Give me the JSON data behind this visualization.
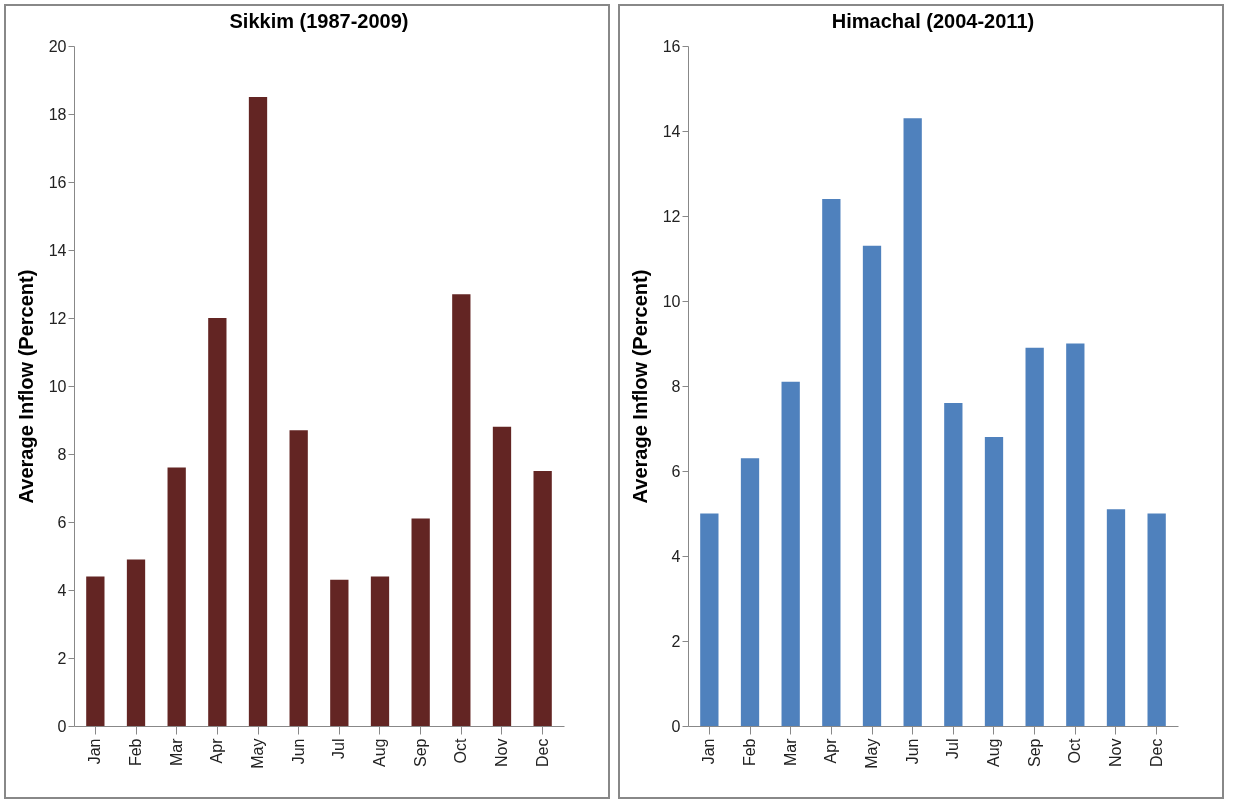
{
  "chart_data": [
    {
      "type": "bar",
      "title": "Sikkim (1987-2009)",
      "ylabel": "Average Inflow (Percent)",
      "categories": [
        "Jan",
        "Feb",
        "Mar",
        "Apr",
        "May",
        "Jun",
        "Jul",
        "Aug",
        "Sep",
        "Oct",
        "Nov",
        "Dec"
      ],
      "values": [
        4.4,
        4.9,
        7.6,
        12.0,
        18.5,
        8.7,
        4.3,
        4.4,
        6.1,
        12.7,
        8.8,
        7.5
      ],
      "color": "#632523",
      "ylim": [
        0,
        20
      ],
      "yticks": [
        0,
        2,
        4,
        6,
        8,
        10,
        12,
        14,
        16,
        18,
        20
      ],
      "grid": false
    },
    {
      "type": "bar",
      "title": "Himachal (2004-2011)",
      "ylabel": "Average  Inflow (Percent)",
      "categories": [
        "Jan",
        "Feb",
        "Mar",
        "Apr",
        "May",
        "Jun",
        "Jul",
        "Aug",
        "Sep",
        "Oct",
        "Nov",
        "Dec"
      ],
      "values": [
        5.0,
        6.3,
        8.1,
        12.4,
        11.3,
        14.3,
        7.6,
        6.8,
        8.9,
        9.0,
        5.1,
        5.0
      ],
      "color": "#4f81bd",
      "ylim": [
        0,
        16
      ],
      "yticks": [
        0,
        2,
        4,
        6,
        8,
        10,
        12,
        14,
        16
      ],
      "grid": false
    }
  ]
}
